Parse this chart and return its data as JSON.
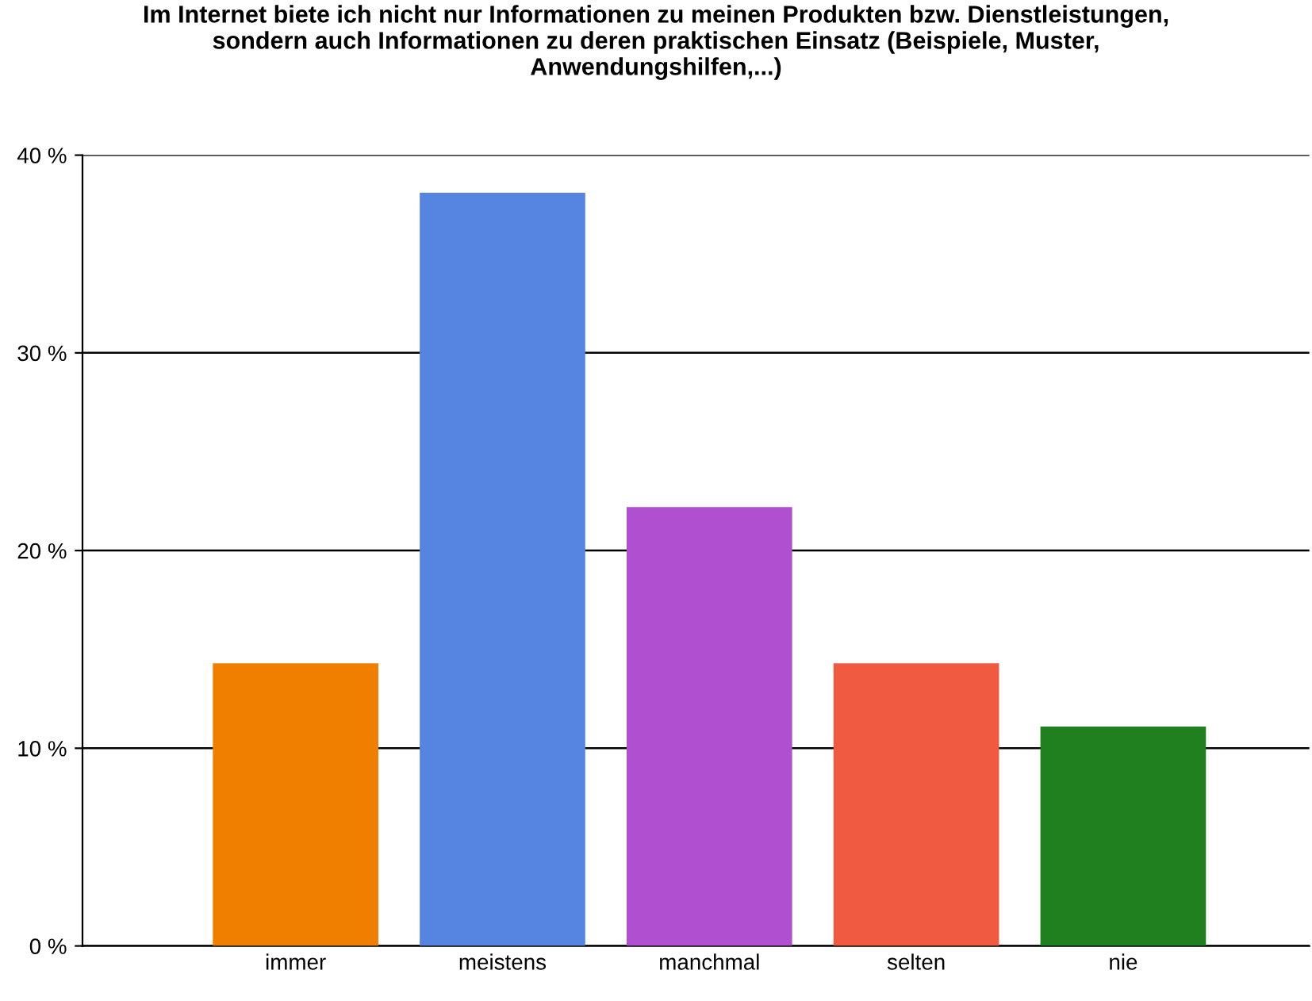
{
  "chart_data": {
    "type": "bar",
    "title": "Im Internet biete ich nicht nur Informationen zu meinen Produkten bzw. Dienstleistungen,\nsondern auch Informationen zu deren praktischen Einsatz (Beispiele, Muster,\nAnwendungshilfen,...)",
    "categories": [
      "immer",
      "meistens",
      "manchmal",
      "selten",
      "nie"
    ],
    "values": [
      14.3,
      38.1,
      22.2,
      14.3,
      11.1
    ],
    "colors": [
      "#f07f00",
      "#5585e0",
      "#b050d0",
      "#f05a40",
      "#208020"
    ],
    "ylim": [
      0,
      40
    ],
    "yticks": [
      {
        "value": 0,
        "label": "0 %"
      },
      {
        "value": 10,
        "label": "10 %"
      },
      {
        "value": 20,
        "label": "20 %"
      },
      {
        "value": 30,
        "label": "30 %"
      },
      {
        "value": 40,
        "label": "40 %"
      }
    ],
    "grid": "y"
  }
}
